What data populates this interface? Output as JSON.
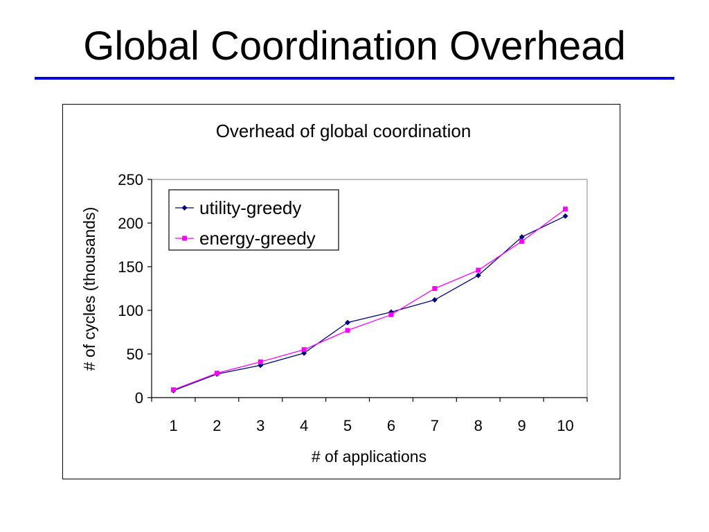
{
  "slide": {
    "title": "Global Coordination Overhead"
  },
  "colors": {
    "rule": "#0000e0",
    "utility": "#000080",
    "energy": "#ff00ff"
  },
  "chart_data": {
    "type": "line",
    "title": "Overhead of global coordination",
    "xlabel": "# of applications",
    "ylabel": "# of cycles (thousands)",
    "ylim": [
      0,
      250
    ],
    "yticks": [
      0,
      50,
      100,
      150,
      200,
      250
    ],
    "categories": [
      "1",
      "2",
      "3",
      "4",
      "5",
      "6",
      "7",
      "8",
      "9",
      "10"
    ],
    "legend_position": "top-left",
    "series": [
      {
        "name": "utility-greedy",
        "marker": "diamond",
        "color": "#000080",
        "values": [
          8,
          27,
          37,
          51,
          86,
          98,
          112,
          140,
          184,
          208
        ]
      },
      {
        "name": "energy-greedy",
        "marker": "square",
        "color": "#ff00ff",
        "values": [
          9,
          28,
          41,
          55,
          77,
          95,
          125,
          146,
          179,
          216
        ]
      }
    ]
  }
}
